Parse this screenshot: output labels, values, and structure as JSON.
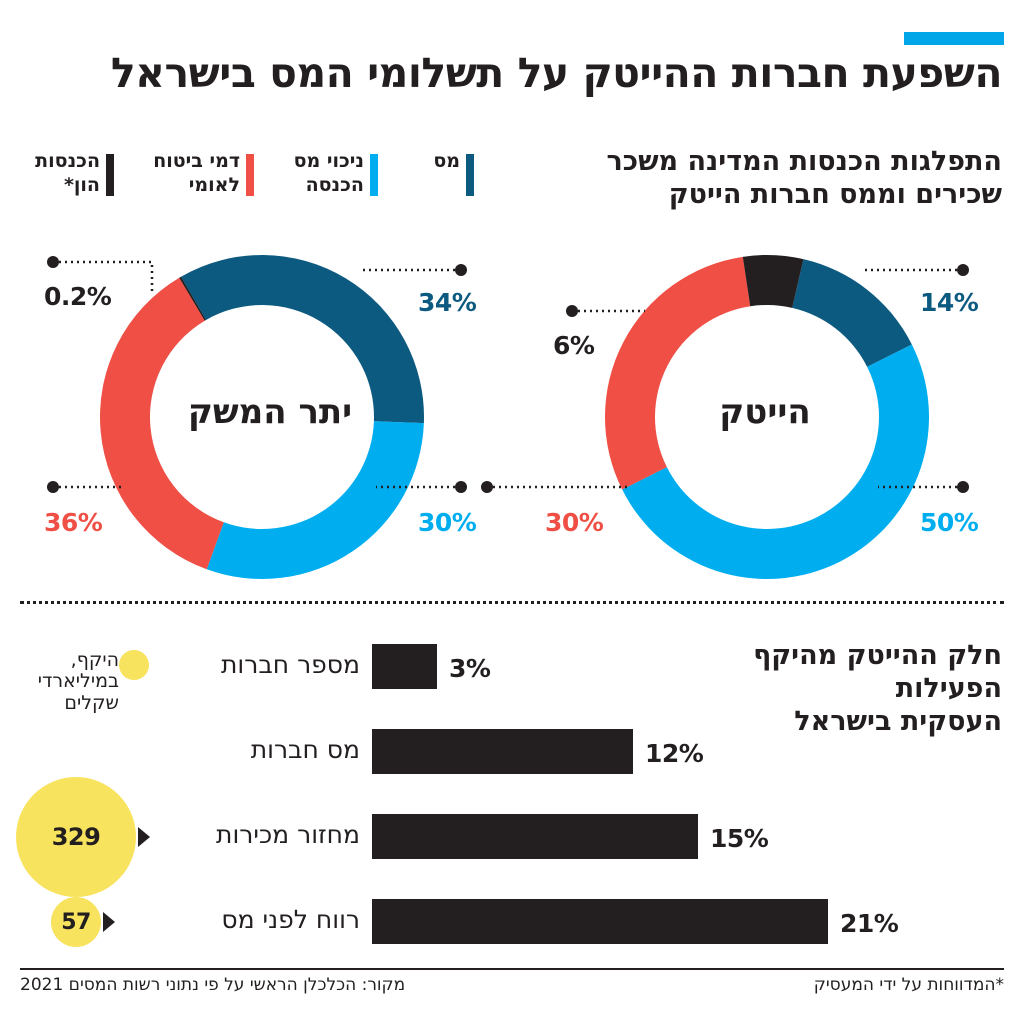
{
  "title": "השפעת חברות ההייטק על תשלומי המס בישראל",
  "colors": {
    "accent_bar": "#00a6e8",
    "tax": "#0d5a80",
    "income_deduction": "#00aeef",
    "national_insurance": "#ef4f45",
    "capital_income": "#231f20",
    "volume": "#f7e35d"
  },
  "pie_section": {
    "title_line1": "התפלגות הכנסות המדינה משכר",
    "title_line2": "שכירים וממס חברות הייטק",
    "legend": [
      {
        "line1": "מס",
        "line2": "",
        "color": "#0d5a80"
      },
      {
        "line1": "ניכוי מס",
        "line2": "הכנסה",
        "color": "#00aeef"
      },
      {
        "line1": "דמי ביטוח",
        "line2": "לאומי",
        "color": "#ef4f45"
      },
      {
        "line1": "הכנסות",
        "line2": "הון*",
        "color": "#231f20"
      }
    ]
  },
  "chart_data": [
    {
      "type": "pie",
      "style": "donut",
      "title": "הייטק",
      "categories": [
        "מס",
        "ניכוי מס הכנסה",
        "דמי ביטוח לאומי",
        "הכנסות הון*"
      ],
      "values": [
        14,
        50,
        30,
        6
      ],
      "labels": [
        "14%",
        "50%",
        "30%",
        "6%"
      ]
    },
    {
      "type": "pie",
      "style": "donut",
      "title": "יתר המשק",
      "categories": [
        "מס",
        "ניכוי מס הכנסה",
        "דמי ביטוח לאומי",
        "הכנסות הון*"
      ],
      "values": [
        34,
        30,
        36,
        0.2
      ],
      "labels": [
        "34%",
        "30%",
        "36%",
        "0.2%"
      ]
    },
    {
      "type": "bar",
      "orientation": "horizontal",
      "title": "חלק ההייטק מהיקף הפעילות העסקית בישראל",
      "categories": [
        "מספר חברות",
        "מס חברות",
        "מחזור מכירות",
        "רווח לפני מס"
      ],
      "values": [
        3,
        12,
        15,
        21
      ],
      "labels": [
        "3%",
        "12%",
        "15%",
        "21%"
      ],
      "unit": "%",
      "volume_title": "היקף, במיליארדי שקלים",
      "volume_values": [
        null,
        null,
        329,
        57
      ],
      "volume_labels": [
        "",
        "",
        "329",
        "57"
      ]
    }
  ],
  "bars_section": {
    "title_line1": "חלק ההייטק מהיקף הפעילות",
    "title_line2": "העסקית בישראל",
    "volume_note_line1": "היקף,",
    "volume_note_line2": "במיליארדי",
    "volume_note_line3": "שקלים"
  },
  "footer": {
    "note": "*המדווחות על ידי המעסיק",
    "source": "מקור: הכלכלן הראשי על פי נתוני רשות המסים 2021"
  }
}
